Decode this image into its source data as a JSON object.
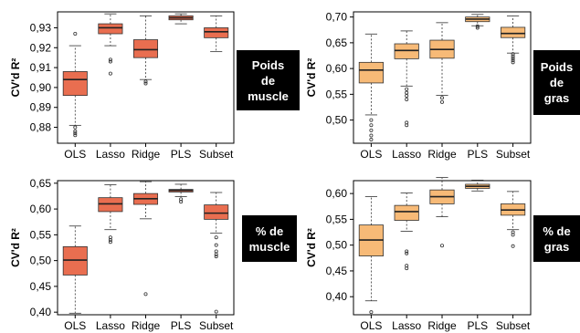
{
  "colors": {
    "red": "#E96E50",
    "orange": "#F7BA77",
    "outline": "#333333"
  },
  "chart_data": [
    {
      "type": "boxplot",
      "ylabel": "CV'd R²",
      "panel_label": [
        "Poids",
        "de",
        "muscle"
      ],
      "categories": [
        "OLS",
        "Lasso",
        "Ridge",
        "PLS",
        "Subset"
      ],
      "ylim": [
        0.872,
        0.938
      ],
      "yticks": [
        "0,88",
        "0,89",
        "0,90",
        "0,91",
        "0,92",
        "0,93"
      ],
      "ytick_values": [
        0.88,
        0.89,
        0.9,
        0.91,
        0.92,
        0.93
      ],
      "color": "red",
      "boxes": [
        {
          "whisker_low": 0.881,
          "q1": 0.896,
          "median": 0.904,
          "q3": 0.908,
          "whisker_high": 0.921,
          "outliers": [
            0.927,
            0.88,
            0.878,
            0.877,
            0.876
          ]
        },
        {
          "whisker_low": 0.921,
          "q1": 0.927,
          "median": 0.93,
          "q3": 0.932,
          "whisker_high": 0.937,
          "outliers": [
            0.914,
            0.913,
            0.907
          ]
        },
        {
          "whisker_low": 0.904,
          "q1": 0.915,
          "median": 0.919,
          "q3": 0.924,
          "whisker_high": 0.936,
          "outliers": [
            0.903,
            0.902
          ]
        },
        {
          "whisker_low": 0.932,
          "q1": 0.934,
          "median": 0.935,
          "q3": 0.936,
          "whisker_high": 0.937,
          "outliers": []
        },
        {
          "whisker_low": 0.918,
          "q1": 0.925,
          "median": 0.928,
          "q3": 0.93,
          "whisker_high": 0.936,
          "outliers": []
        }
      ]
    },
    {
      "type": "boxplot",
      "ylabel": "CV'd R²",
      "panel_label": [
        "Poids",
        "de",
        "gras"
      ],
      "categories": [
        "OLS",
        "Lasso",
        "Ridge",
        "PLS",
        "Subset"
      ],
      "ylim": [
        0.455,
        0.71
      ],
      "yticks": [
        "0,50",
        "0,55",
        "0,60",
        "0,65",
        "0,70"
      ],
      "ytick_values": [
        0.5,
        0.55,
        0.6,
        0.65,
        0.7
      ],
      "color": "orange",
      "boxes": [
        {
          "whisker_low": 0.51,
          "q1": 0.572,
          "median": 0.597,
          "q3": 0.612,
          "whisker_high": 0.667,
          "outliers": [
            0.5,
            0.49,
            0.48,
            0.47,
            0.462
          ]
        },
        {
          "whisker_low": 0.566,
          "q1": 0.619,
          "median": 0.635,
          "q3": 0.648,
          "whisker_high": 0.673,
          "outliers": [
            0.56,
            0.553,
            0.547,
            0.54,
            0.495,
            0.49
          ]
        },
        {
          "whisker_low": 0.548,
          "q1": 0.62,
          "median": 0.637,
          "q3": 0.655,
          "whisker_high": 0.689,
          "outliers": [
            0.543,
            0.535
          ]
        },
        {
          "whisker_low": 0.683,
          "q1": 0.691,
          "median": 0.696,
          "q3": 0.7,
          "whisker_high": 0.705,
          "outliers": [
            0.682,
            0.679
          ]
        },
        {
          "whisker_low": 0.63,
          "q1": 0.66,
          "median": 0.668,
          "q3": 0.68,
          "whisker_high": 0.702,
          "outliers": [
            0.628,
            0.624,
            0.62,
            0.616,
            0.612
          ]
        }
      ]
    },
    {
      "type": "boxplot",
      "ylabel": "CV'd R²",
      "panel_label": [
        "% de",
        "muscle"
      ],
      "categories": [
        "OLS",
        "Lasso",
        "Ridge",
        "PLS",
        "Subset"
      ],
      "ylim": [
        0.395,
        0.655
      ],
      "yticks": [
        "0,40",
        "0,45",
        "0,50",
        "0,55",
        "0,60",
        "0,65"
      ],
      "ytick_values": [
        0.4,
        0.45,
        0.5,
        0.55,
        0.6,
        0.65
      ],
      "color": "red",
      "boxes": [
        {
          "whisker_low": 0.398,
          "q1": 0.472,
          "median": 0.501,
          "q3": 0.527,
          "whisker_high": 0.567,
          "outliers": []
        },
        {
          "whisker_low": 0.56,
          "q1": 0.595,
          "median": 0.61,
          "q3": 0.622,
          "whisker_high": 0.647,
          "outliers": [
            0.545,
            0.54,
            0.536
          ]
        },
        {
          "whisker_low": 0.581,
          "q1": 0.609,
          "median": 0.62,
          "q3": 0.63,
          "whisker_high": 0.653,
          "outliers": [
            0.435
          ]
        },
        {
          "whisker_low": 0.624,
          "q1": 0.633,
          "median": 0.636,
          "q3": 0.638,
          "whisker_high": 0.648,
          "outliers": [
            0.619,
            0.614
          ]
        },
        {
          "whisker_low": 0.553,
          "q1": 0.58,
          "median": 0.592,
          "q3": 0.608,
          "whisker_high": 0.632,
          "outliers": [
            0.545,
            0.53,
            0.518,
            0.512,
            0.508,
            0.401
          ]
        }
      ]
    },
    {
      "type": "boxplot",
      "ylabel": "CV'd R²",
      "panel_label": [
        "% de",
        "gras"
      ],
      "categories": [
        "OLS",
        "Lasso",
        "Ridge",
        "PLS",
        "Subset"
      ],
      "ylim": [
        0.365,
        0.625
      ],
      "yticks": [
        "0,40",
        "0,45",
        "0,50",
        "0,55",
        "0,60"
      ],
      "ytick_values": [
        0.4,
        0.45,
        0.5,
        0.55,
        0.6
      ],
      "color": "orange",
      "boxes": [
        {
          "whisker_low": 0.392,
          "q1": 0.479,
          "median": 0.51,
          "q3": 0.539,
          "whisker_high": 0.594,
          "outliers": [
            0.37
          ]
        },
        {
          "whisker_low": 0.527,
          "q1": 0.548,
          "median": 0.565,
          "q3": 0.577,
          "whisker_high": 0.601,
          "outliers": [
            0.488,
            0.484,
            0.46,
            0.455
          ]
        },
        {
          "whisker_low": 0.555,
          "q1": 0.58,
          "median": 0.594,
          "q3": 0.607,
          "whisker_high": 0.631,
          "outliers": [
            0.499
          ]
        },
        {
          "whisker_low": 0.605,
          "q1": 0.61,
          "median": 0.614,
          "q3": 0.618,
          "whisker_high": 0.626,
          "outliers": []
        },
        {
          "whisker_low": 0.53,
          "q1": 0.558,
          "median": 0.568,
          "q3": 0.58,
          "whisker_high": 0.604,
          "outliers": [
            0.525,
            0.52,
            0.498
          ]
        }
      ]
    }
  ]
}
